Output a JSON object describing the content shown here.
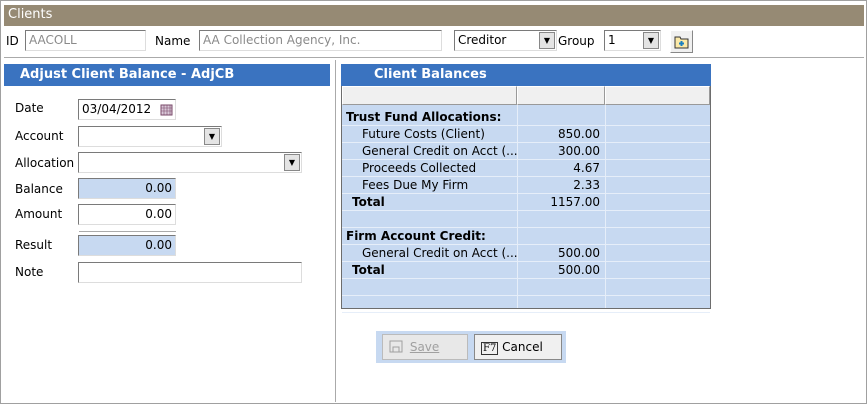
{
  "window": {
    "title": "Clients"
  },
  "header": {
    "id_label": "ID",
    "id_value": "AACOLL",
    "name_label": "Name",
    "name_value": "AA Collection Agency, Inc.",
    "type_value": "Creditor",
    "group_label": "Group",
    "group_value": "1",
    "folder_icon": "add-folder-icon"
  },
  "form": {
    "title": "Adjust Client Balance - AdjCB",
    "date_label": "Date",
    "date_value": "03/04/2012",
    "account_label": "Account",
    "account_value": "",
    "allocation_label": "Allocation",
    "allocation_value": "",
    "balance_label": "Balance",
    "balance_value": "0.00",
    "amount_label": "Amount",
    "amount_value": "0.00",
    "result_label": "Result",
    "result_value": "0.00",
    "note_label": "Note",
    "note_value": ""
  },
  "balances": {
    "title": "Client Balances",
    "rows": [
      {
        "label": "Trust Fund Allocations:",
        "value": "",
        "style": "section"
      },
      {
        "label": "Future Costs (Client)",
        "value": "850.00",
        "style": "item"
      },
      {
        "label": "General Credit on Acct (...",
        "value": "300.00",
        "style": "item"
      },
      {
        "label": "Proceeds Collected",
        "value": "4.67",
        "style": "item"
      },
      {
        "label": "Fees Due My Firm",
        "value": "2.33",
        "style": "item"
      },
      {
        "label": "Total",
        "value": "1157.00",
        "style": "total"
      },
      {
        "label": "",
        "value": "",
        "style": "item"
      },
      {
        "label": "Firm Account Credit:",
        "value": "",
        "style": "section"
      },
      {
        "label": "General Credit on Acct (...",
        "value": "500.00",
        "style": "item"
      },
      {
        "label": "Total",
        "value": "500.00",
        "style": "total"
      },
      {
        "label": "",
        "value": "",
        "style": "item"
      },
      {
        "label": "",
        "value": "",
        "style": "item"
      }
    ]
  },
  "buttons": {
    "save": "Save",
    "cancel_key": "F7",
    "cancel": "Cancel"
  },
  "colors": {
    "title_bar": "#968a74",
    "panel_header": "#3a73c0",
    "readonly_field": "#c7d9f1"
  }
}
